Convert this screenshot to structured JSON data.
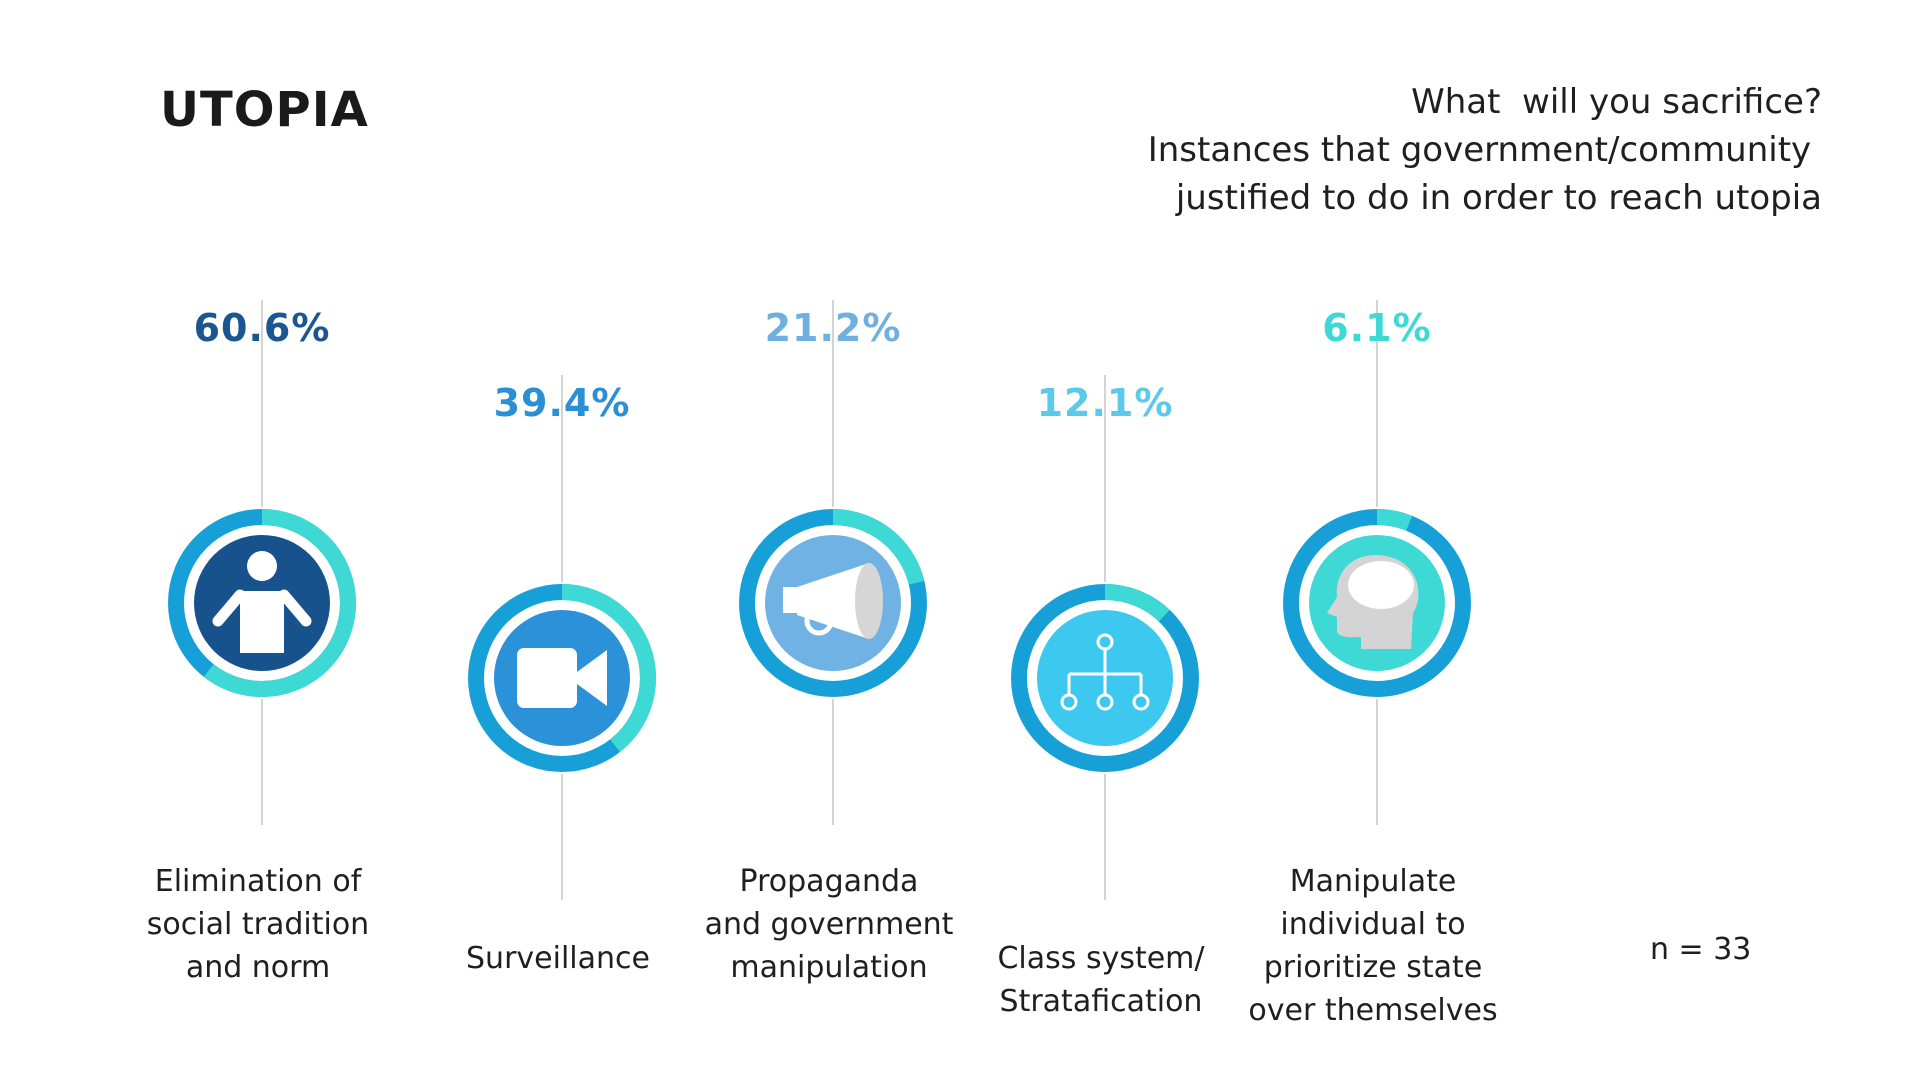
{
  "title": "UTOPIA",
  "subtitle_lines": [
    "What  will you sacrifice?",
    "Instances that government/community ",
    "justified to do in order to reach utopia"
  ],
  "sample": "n = 33",
  "colors": {
    "ring_base": "#17a0d8",
    "ring_highlight": "#3fd9d5",
    "connector": "#d4d4d4"
  },
  "chart_data": {
    "type": "bar",
    "title": "What  will you sacrifice?",
    "categories": [
      [
        "Elimination of",
        "social tradition",
        "and norm"
      ],
      [
        "Surveillance"
      ],
      [
        "Propaganda",
        "and government",
        "manipulation"
      ],
      [
        "Class system/",
        "Stratafication"
      ],
      [
        "Manipulate",
        "individual to",
        "prioritize state",
        "over themselves"
      ]
    ],
    "values": [
      60.6,
      39.4,
      21.2,
      12.1,
      6.1
    ],
    "labels": [
      "60.6%",
      "39.4%",
      "21.2%",
      "12.1%",
      "6.1%"
    ],
    "label_colors": [
      "#1a5690",
      "#2b8fd4",
      "#6fb0e0",
      "#5cc8ea",
      "#3fd9d5"
    ],
    "icon_fills": [
      "#17528c",
      "#2b91d9",
      "#70b2e3",
      "#3dc8ef",
      "#3fd9d5"
    ],
    "icons": [
      "person-icon",
      "video-camera-icon",
      "megaphone-icon",
      "hierarchy-icon",
      "head-icon"
    ],
    "ylim": [
      0,
      100
    ]
  }
}
